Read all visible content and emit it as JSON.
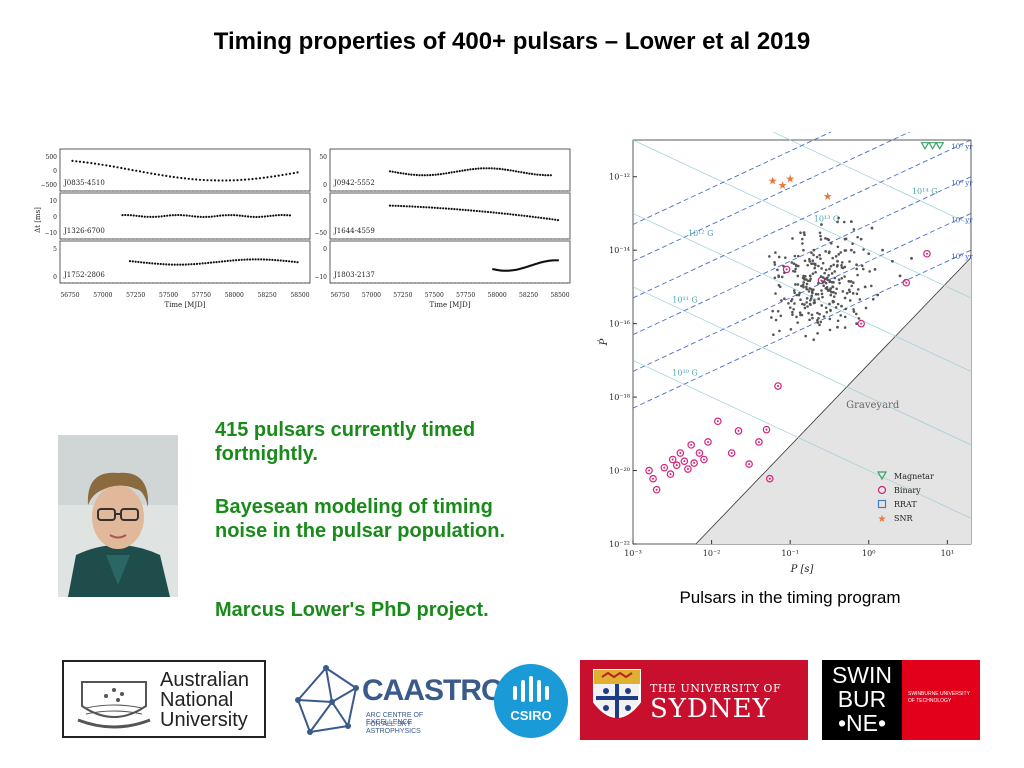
{
  "title": "Timing properties of 400+ pulsars – Lower et al 2019",
  "text_blocks": [
    "415 pulsars currently timed fortnightly.",
    "Bayesean modeling of timing noise in the pulsar population.",
    "Marcus Lower's PhD project."
  ],
  "caption": "Pulsars in the timing program",
  "timing_panels": {
    "ylabel": "Δt [ms]",
    "xlabel": "Time [MJD]",
    "xticks": [
      "56750",
      "57000",
      "57250",
      "57500",
      "57750",
      "58000",
      "58250",
      "58500"
    ],
    "panels": [
      {
        "name": "J0835-4510",
        "yticks": [
          "500",
          "0",
          "−500"
        ]
      },
      {
        "name": "J0942-5552",
        "yticks": [
          "50",
          "0"
        ]
      },
      {
        "name": "J1326-6700",
        "yticks": [
          "10",
          "0",
          "−10"
        ]
      },
      {
        "name": "J1644-4559",
        "yticks": [
          "0",
          "−50"
        ]
      },
      {
        "name": "J1752-2806",
        "yticks": [
          "5",
          "0"
        ]
      },
      {
        "name": "J1803-2137",
        "yticks": [
          "0",
          "−10"
        ]
      }
    ]
  },
  "chart_data": {
    "type": "scatter",
    "xlabel": "P [s]",
    "ylabel": "Ṗ",
    "x_scale": "log",
    "y_scale": "log",
    "xlim": [
      0.001,
      20
    ],
    "ylim": [
      1e-22,
      1e-11
    ],
    "xticks": [
      "10⁻³",
      "10⁻²",
      "10⁻¹",
      "10⁰",
      "10¹"
    ],
    "yticks": [
      "10⁻¹²",
      "10⁻¹⁴",
      "10⁻¹⁶",
      "10⁻¹⁸",
      "10⁻²⁰",
      "10⁻²²"
    ],
    "region_label": "Graveyard",
    "bfield_labels": [
      "10¹⁴ G",
      "10¹³ G",
      "10¹² G",
      "10¹¹ G",
      "10¹⁰ G"
    ],
    "age_labels": [
      "10³ yr",
      "10⁴ yr",
      "10⁵ yr",
      "10⁶ yr",
      "10⁷ yr",
      "10⁸ yr"
    ],
    "legend": [
      "Magnetar",
      "Binary",
      "RRAT",
      "SNR"
    ],
    "legend_position": "lower-right",
    "series": [
      {
        "name": "Binary",
        "color": "#d4207a",
        "points": [
          [
            0.0016,
            1e-20
          ],
          [
            0.0018,
            6e-21
          ],
          [
            0.002,
            3e-21
          ],
          [
            0.0025,
            1.2e-20
          ],
          [
            0.003,
            8e-21
          ],
          [
            0.0032,
            2e-20
          ],
          [
            0.0036,
            1.4e-20
          ],
          [
            0.004,
            3e-20
          ],
          [
            0.0045,
            1.8e-20
          ],
          [
            0.005,
            1.1e-20
          ],
          [
            0.0055,
            5e-20
          ],
          [
            0.006,
            1.6e-20
          ],
          [
            0.007,
            3e-20
          ],
          [
            0.008,
            2e-20
          ],
          [
            0.009,
            6e-20
          ],
          [
            0.012,
            2.2e-19
          ],
          [
            0.018,
            3e-20
          ],
          [
            0.022,
            1.2e-19
          ],
          [
            0.03,
            1.5e-20
          ],
          [
            0.04,
            6e-20
          ],
          [
            0.05,
            1.3e-19
          ],
          [
            0.055,
            6e-21
          ],
          [
            0.07,
            2e-18
          ],
          [
            0.09,
            3e-15
          ],
          [
            0.25,
            1.5e-15
          ],
          [
            0.8,
            1e-16
          ],
          [
            3,
            1.3e-15
          ],
          [
            5.5,
            8e-15
          ]
        ]
      },
      {
        "name": "SNR",
        "color": "#e8783c",
        "points": [
          [
            0.06,
            8e-13
          ],
          [
            0.08,
            6e-13
          ],
          [
            0.1,
            9e-13
          ],
          [
            0.3,
            3e-13
          ]
        ]
      },
      {
        "name": "Magnetar",
        "color": "#3aa36a",
        "points": [
          [
            5.2,
            7e-12
          ],
          [
            6.5,
            7e-12
          ],
          [
            8,
            7e-12
          ]
        ]
      },
      {
        "name": "Pulsars",
        "color": "#555555",
        "points": [
          [
            0.15,
            3e-14
          ],
          [
            0.2,
            1e-14
          ],
          [
            0.3,
            2e-14
          ],
          [
            0.4,
            5e-15
          ],
          [
            0.5,
            2e-14
          ],
          [
            0.6,
            1e-14
          ],
          [
            0.7,
            4e-15
          ],
          [
            0.8,
            2e-14
          ],
          [
            1,
            8e-15
          ],
          [
            1.2,
            3e-15
          ],
          [
            1.5,
            1e-14
          ],
          [
            2,
            5e-15
          ],
          [
            0.35,
            1e-15
          ],
          [
            0.45,
            3e-16
          ],
          [
            0.9,
            1e-15
          ],
          [
            0.25,
            5e-14
          ],
          [
            0.6,
            6e-14
          ],
          [
            1.1,
            4e-14
          ],
          [
            0.18,
            2e-15
          ],
          [
            2.5,
            2e-15
          ],
          [
            0.5,
            5e-16
          ],
          [
            0.7,
            1e-16
          ],
          [
            0.4,
            8e-17
          ],
          [
            1.3,
            6e-16
          ],
          [
            3.5,
            6e-15
          ]
        ]
      }
    ]
  },
  "logos": {
    "anu": [
      "Australian",
      "National",
      "University"
    ],
    "caastro": {
      "name": "CAASTRO",
      "sub1": "ARC CENTRE OF EXCELLENCE",
      "sub2": "FOR ALL-SKY ASTROPHYSICS"
    },
    "csiro": "CSIRO",
    "sydney": {
      "line1": "THE UNIVERSITY OF",
      "line2": "SYDNEY"
    },
    "swinburne": {
      "lines": [
        "SWIN",
        "BUR",
        "•NE•"
      ],
      "sub1": "SWINBURNE UNIVERSITY",
      "sub2": "OF TECHNOLOGY"
    }
  },
  "colors": {
    "green": "#1a8a1a",
    "binary": "#d4207a",
    "snr": "#e8783c",
    "magnetar": "#3aa36a",
    "rrat": "#4a7fbf",
    "sydney_red": "#c8102e",
    "swin_red": "#e3001b"
  }
}
